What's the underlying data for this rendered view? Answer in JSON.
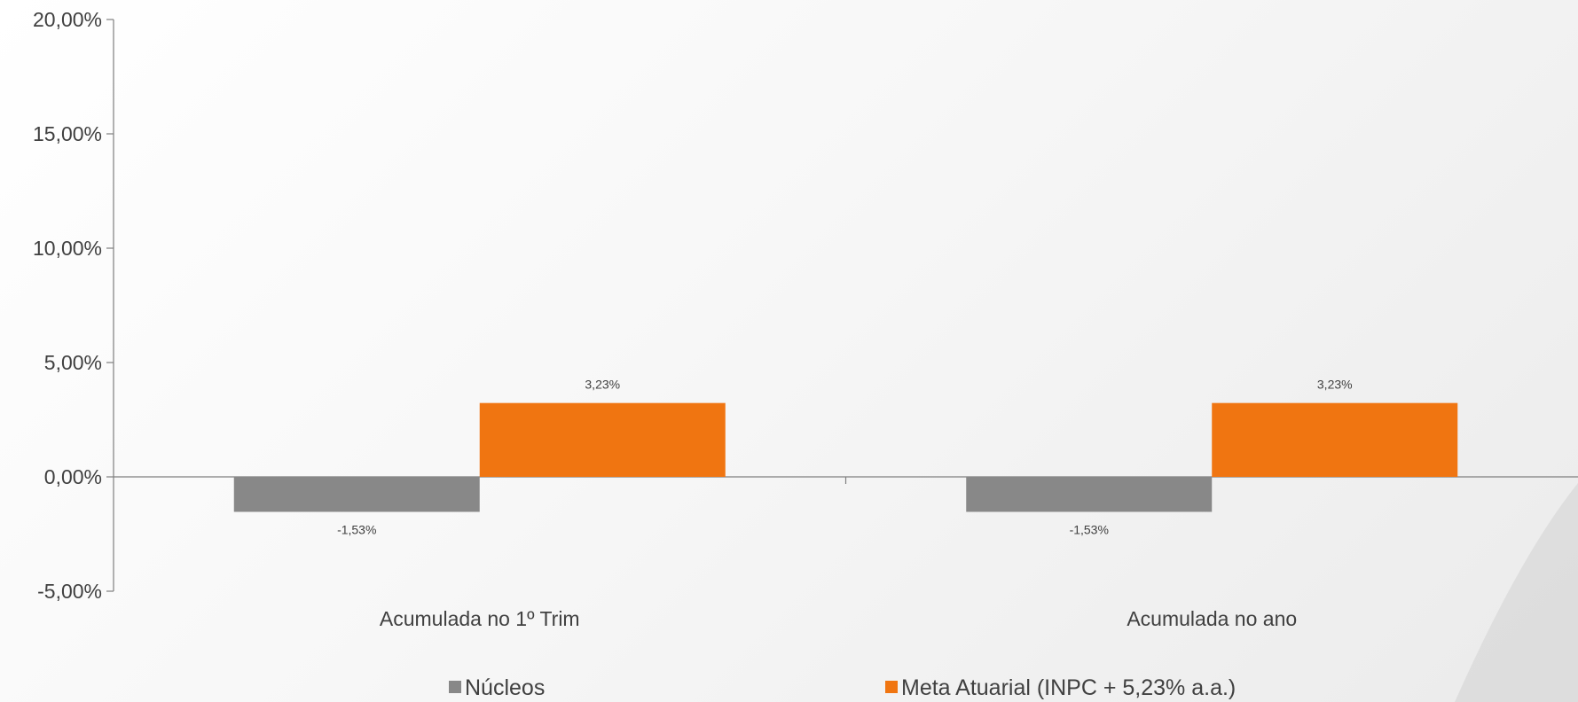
{
  "chart_data": {
    "type": "bar",
    "categories": [
      "Acumulada no 1º Trim",
      "Acumulada no ano"
    ],
    "series": [
      {
        "name": "Núcleos",
        "values": [
          -1.53,
          -1.53
        ],
        "labels": [
          "-1,53%",
          "-1,53%"
        ],
        "color": "#888888"
      },
      {
        "name": "Meta Atuarial (INPC + 5,23% a.a.)",
        "values": [
          3.23,
          3.23
        ],
        "labels": [
          "3,23%",
          "3,23%"
        ],
        "color": "#f07511"
      }
    ],
    "y_ticks": [
      20,
      15,
      10,
      5,
      0,
      -5
    ],
    "y_tick_labels": [
      "20,00%",
      "15,00%",
      "10,00%",
      "5,00%",
      "0,00%",
      "-5,00%"
    ],
    "ylim": [
      -5,
      20
    ],
    "grid": false,
    "legend": "bottom"
  }
}
